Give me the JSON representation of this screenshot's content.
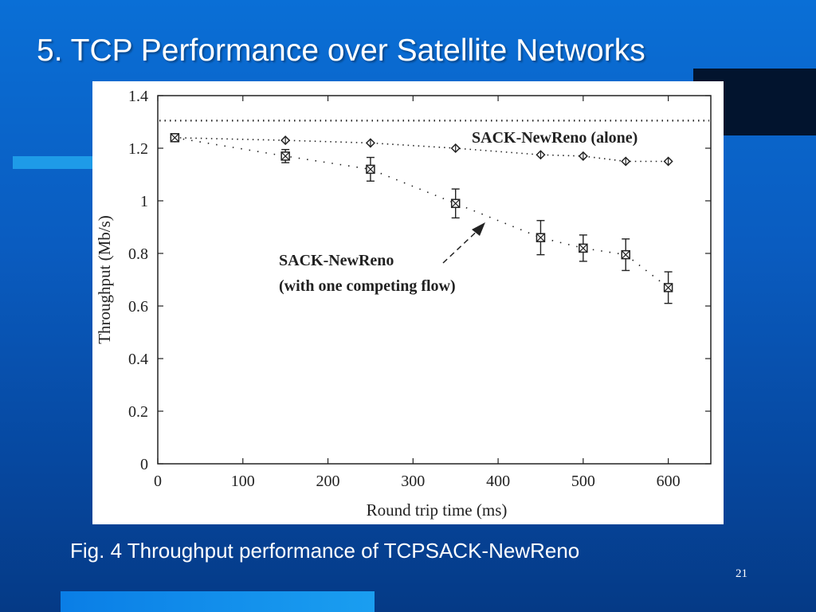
{
  "slide": {
    "title": "5. TCP Performance over Satellite Networks",
    "caption": "Fig. 4 Throughput performance of TCPSACK-NewReno",
    "page_number": "21"
  },
  "colors": {
    "background_top": "#0a6fd6",
    "background_bottom": "#053a86",
    "accent_stripe": "#1e9be8",
    "dark_block": "#02142e",
    "chart_ink": "#222222"
  },
  "chart_data": {
    "type": "scatter",
    "xlabel": "Round trip time (ms)",
    "ylabel": "Throughput (Mb/s)",
    "xlim": [
      0,
      650
    ],
    "ylim": [
      0,
      1.4
    ],
    "x_ticks": [
      0,
      100,
      200,
      300,
      400,
      500,
      600
    ],
    "y_ticks": [
      0,
      0.2,
      0.4,
      0.6,
      0.8,
      1,
      1.2,
      1.4
    ],
    "y_tick_labels": [
      "0",
      "0.2",
      "0.4",
      "0.6",
      "0.8",
      "1",
      "1.2",
      "1.4"
    ],
    "grid": false,
    "reference_line": {
      "y": 1.305,
      "style": "dotted"
    },
    "series": [
      {
        "name": "SACK-NewReno (alone)",
        "marker": "diamond",
        "x": [
          20,
          150,
          250,
          350,
          450,
          500,
          550,
          600
        ],
        "y": [
          1.24,
          1.23,
          1.22,
          1.2,
          1.175,
          1.17,
          1.15,
          1.15
        ]
      },
      {
        "name": "SACK-NewReno (with one competing flow)",
        "marker": "box-x",
        "x": [
          20,
          150,
          250,
          350,
          450,
          500,
          550,
          600
        ],
        "y": [
          1.24,
          1.17,
          1.12,
          0.99,
          0.86,
          0.82,
          0.795,
          0.67
        ],
        "error": [
          0.015,
          0.025,
          0.045,
          0.055,
          0.065,
          0.05,
          0.06,
          0.06
        ]
      }
    ],
    "annotations": [
      {
        "text": "SACK-NewReno (alone)"
      },
      {
        "text": "SACK-NewReno"
      },
      {
        "text": "(with one competing flow)"
      }
    ]
  }
}
